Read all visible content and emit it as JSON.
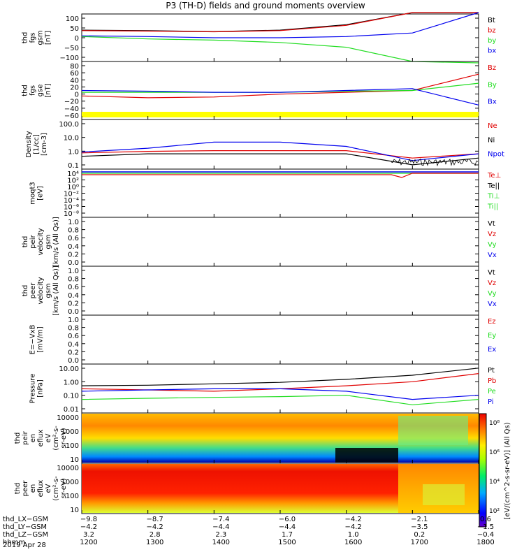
{
  "title": "P3 (TH-D) fields and ground moments overview",
  "date": "2019 Apr 28",
  "colors": {
    "black": "#000000",
    "red": "#e00000",
    "green": "#22dd22",
    "blue": "#0000ee",
    "yellow": "#ffff00"
  },
  "panels": [
    {
      "id": "fgs-gsm",
      "ylabel": [
        "thd",
        "fgs",
        "gsm",
        "[nT]"
      ],
      "ticks": [
        "100",
        "50",
        "0",
        "−50",
        "−100"
      ],
      "legend": [
        [
          "Bt",
          "#000000"
        ],
        [
          "bz",
          "#e00000"
        ],
        [
          "by",
          "#22dd22"
        ],
        [
          "bx",
          "#0000ee"
        ]
      ]
    },
    {
      "id": "fgs-gse",
      "ylabel": [
        "thd",
        "fgs",
        "gse",
        "[nT]"
      ],
      "ticks": [
        "80",
        "60",
        "40",
        "20",
        "0",
        "−20",
        "−40",
        "−60"
      ],
      "legend": [
        [
          "Bz",
          "#e00000"
        ],
        [
          "By",
          "#22dd22"
        ],
        [
          "Bx",
          "#0000ee"
        ]
      ]
    },
    {
      "id": "density",
      "ylabel": [
        "Density",
        "[1/cc]",
        "[cm-3]"
      ],
      "ticks": [
        "100.0",
        "10.0",
        "1.0",
        "0.1"
      ],
      "legend": [
        [
          "Ne",
          "#e00000"
        ],
        [
          "Ni",
          "#000000"
        ],
        [
          "Npot",
          "#0000ee"
        ]
      ]
    },
    {
      "id": "temperature",
      "ylabel": [
        "moqt3",
        "[eV]"
      ],
      "ticks": [
        "10⁴",
        "10²",
        "10⁰",
        "10⁻²",
        "10⁻⁴",
        "10⁻⁶",
        "10⁻⁸"
      ],
      "legend": [
        [
          "Te⊥",
          "#e00000"
        ],
        [
          "Te||",
          "#000000"
        ],
        [
          "Ti⊥",
          "#22dd22"
        ],
        [
          "Ti||",
          "#22dd22"
        ]
      ]
    },
    {
      "id": "peir-velocity",
      "ylabel": [
        "thd",
        "peir",
        "velocity",
        "gsm",
        "[km/s (All Qs)]"
      ],
      "ticks": [
        "1.0",
        "0.8",
        "0.6",
        "0.4",
        "0.2",
        "0.0"
      ],
      "legend": [
        [
          "Vt",
          "#000000"
        ],
        [
          "Vz",
          "#e00000"
        ],
        [
          "Vy",
          "#22dd22"
        ],
        [
          "Vx",
          "#0000ee"
        ]
      ]
    },
    {
      "id": "peer-velocity",
      "ylabel": [
        "thd",
        "peer",
        "velocity",
        "gsm",
        "[km/s (All Qs)]"
      ],
      "ticks": [
        "1.0",
        "0.8",
        "0.6",
        "0.4",
        "0.2",
        "0.0"
      ],
      "legend": [
        [
          "Vt",
          "#000000"
        ],
        [
          "Vz",
          "#e00000"
        ],
        [
          "Vy",
          "#22dd22"
        ],
        [
          "Vx",
          "#0000ee"
        ]
      ]
    },
    {
      "id": "efield",
      "ylabel": [
        "E=−VxB",
        "[mV/m]"
      ],
      "ticks": [
        "1.0",
        "0.8",
        "0.6",
        "0.4",
        "0.2",
        "0.0"
      ],
      "legend": [
        [
          "Ez",
          "#e00000"
        ],
        [
          "Ey",
          "#22dd22"
        ],
        [
          "Ex",
          "#0000ee"
        ]
      ]
    },
    {
      "id": "pressure",
      "ylabel": [
        "Pressure",
        "[nPa]"
      ],
      "ticks": [
        "10.00",
        "1.00",
        "0.10",
        "0.01"
      ],
      "legend": [
        [
          "Pt",
          "#000000"
        ],
        [
          "Pb",
          "#e00000"
        ],
        [
          "Pe",
          "#22dd22"
        ],
        [
          "Pi",
          "#0000ee"
        ]
      ]
    },
    {
      "id": "peir-spec",
      "ylabel": [
        "thd",
        "peir",
        "en",
        "eflux",
        "eV",
        "(cm²-s-",
        "sr-eV)"
      ],
      "ticks": [
        "10000",
        "1000",
        "100",
        "10"
      ],
      "legend": []
    },
    {
      "id": "peer-spec",
      "ylabel": [
        "thd",
        "peer",
        "en",
        "eflux",
        "eV",
        "(cm²-s-",
        "sr-eV)"
      ],
      "ticks": [
        "10000",
        "1000",
        "100",
        "10"
      ],
      "legend": []
    }
  ],
  "colorbar": {
    "label": "[eV/(cm^2-s-sr-eV)] (All Qs)",
    "ticks": [
      "10⁸",
      "10⁶",
      "10⁴",
      "10²"
    ]
  },
  "axis_rows": [
    {
      "label": "thd_LX−GSM",
      "values": [
        "−9.8",
        "−8.7",
        "−7.4",
        "−6.0",
        "−4.2",
        "−2.1",
        "0.6"
      ]
    },
    {
      "label": "thd_LY−GSM",
      "values": [
        "−4.2",
        "−4.2",
        "−4.4",
        "−4.4",
        "−4.2",
        "−3.5",
        "−1.5"
      ]
    },
    {
      "label": "thd_LZ−GSM",
      "values": [
        "3.2",
        "2.8",
        "2.3",
        "1.7",
        "1.0",
        "0.2",
        "−0.4"
      ]
    },
    {
      "label": "hhmm",
      "values": [
        "1200",
        "1300",
        "1400",
        "1500",
        "1600",
        "1700",
        "1800"
      ]
    }
  ],
  "chart_data": {
    "type": "line",
    "title": "P3 (TH-D) fields and ground moments overview",
    "x": [
      "1200",
      "1300",
      "1400",
      "1500",
      "1600",
      "1700",
      "1800"
    ],
    "xlabel": "hhmm",
    "series": [
      {
        "name": "Bt",
        "panel": "fgs-gsm",
        "values": [
          32,
          30,
          26,
          32,
          55,
          130,
          250
        ]
      },
      {
        "name": "bz",
        "panel": "fgs-gsm",
        "values": [
          30,
          28,
          25,
          30,
          52,
          110,
          220
        ]
      },
      {
        "name": "by",
        "panel": "fgs-gsm",
        "values": [
          5,
          -5,
          -10,
          -20,
          -40,
          -100,
          -160
        ]
      },
      {
        "name": "bx",
        "panel": "fgs-gsm",
        "values": [
          8,
          5,
          0,
          0,
          5,
          20,
          110
        ]
      },
      {
        "name": "Bz",
        "panel": "fgs-gse",
        "values": [
          -5,
          -10,
          -8,
          0,
          5,
          10,
          55
        ]
      },
      {
        "name": "By",
        "panel": "fgs-gse",
        "values": [
          5,
          5,
          5,
          5,
          8,
          10,
          30
        ]
      },
      {
        "name": "Bx",
        "panel": "fgs-gse",
        "values": [
          10,
          8,
          5,
          5,
          10,
          15,
          -30
        ]
      },
      {
        "name": "Ne",
        "panel": "density",
        "values": [
          0.7,
          0.9,
          1.0,
          1.0,
          1.0,
          0.3,
          0.6
        ]
      },
      {
        "name": "Ni",
        "panel": "density",
        "values": [
          0.4,
          0.6,
          0.6,
          0.6,
          0.6,
          0.1,
          0.3
        ]
      },
      {
        "name": "Npot",
        "panel": "density",
        "values": [
          0.8,
          1.5,
          4.0,
          4.0,
          2.0,
          0.2,
          0.6
        ]
      },
      {
        "name": "Pt",
        "panel": "pressure",
        "values": [
          0.5,
          0.55,
          0.7,
          0.9,
          1.5,
          3.0,
          10.0
        ]
      },
      {
        "name": "Pb",
        "panel": "pressure",
        "values": [
          0.3,
          0.25,
          0.2,
          0.3,
          0.5,
          1.0,
          4.0
        ]
      },
      {
        "name": "Pe",
        "panel": "pressure",
        "values": [
          0.05,
          0.06,
          0.07,
          0.08,
          0.1,
          0.02,
          0.05
        ]
      },
      {
        "name": "Pi",
        "panel": "pressure",
        "values": [
          0.2,
          0.25,
          0.3,
          0.3,
          0.2,
          0.05,
          0.1
        ]
      }
    ]
  }
}
